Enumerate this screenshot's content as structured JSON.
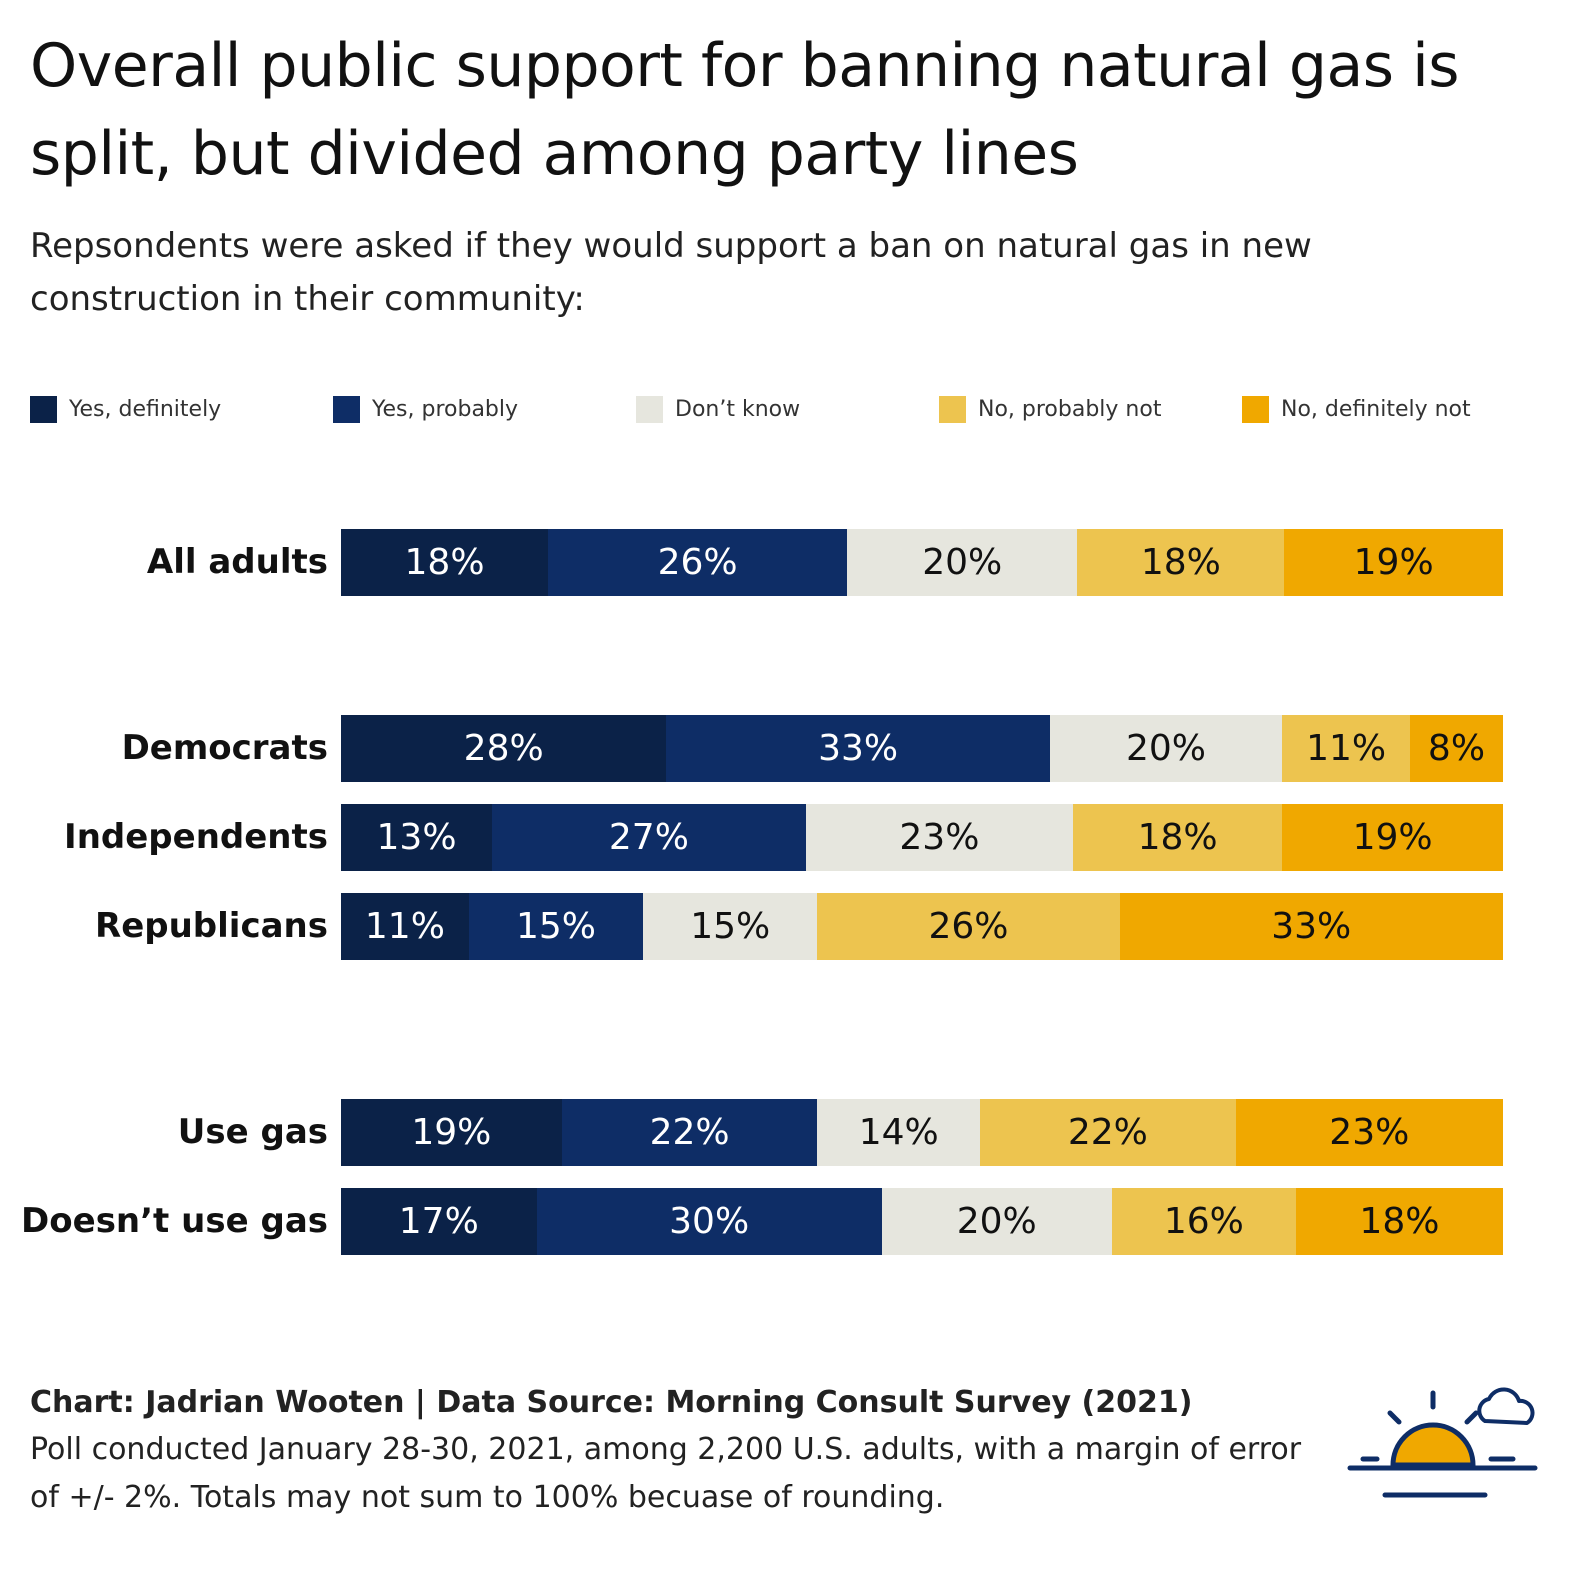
{
  "title": "Overall public support for banning natural gas is split, but divided among party lines",
  "subtitle": "Repsondents were asked if they would support a ban on natural gas in new construction in their community:",
  "legend": [
    {
      "label": "Yes, definitely",
      "color": "#0b2248"
    },
    {
      "label": "Yes, probably",
      "color": "#0e2d66"
    },
    {
      "label": "Don’t know",
      "color": "#e6e6de"
    },
    {
      "label": "No, probably not",
      "color": "#edc44f"
    },
    {
      "label": "No, definitely not",
      "color": "#f0a800"
    }
  ],
  "chart_data": {
    "type": "bar",
    "orientation": "horizontal",
    "stacked": true,
    "categories": [
      "All adults",
      "Democrats",
      "Independents",
      "Republicans",
      "Use gas",
      "Doesn’t use gas"
    ],
    "series": [
      {
        "name": "Yes, definitely",
        "values": [
          18,
          28,
          13,
          11,
          19,
          17
        ]
      },
      {
        "name": "Yes, probably",
        "values": [
          26,
          33,
          27,
          15,
          22,
          30
        ]
      },
      {
        "name": "Don’t know",
        "values": [
          20,
          20,
          23,
          15,
          14,
          20
        ]
      },
      {
        "name": "No, probably not",
        "values": [
          18,
          11,
          18,
          26,
          22,
          16
        ]
      },
      {
        "name": "No, definitely not",
        "values": [
          19,
          8,
          19,
          33,
          23,
          18
        ]
      }
    ],
    "value_suffix": "%",
    "legend_position": "top",
    "grid": false
  },
  "footer": {
    "credit": "Chart: Jadrian Wooten | Data Source: Morning Consult Survey (2021)",
    "note": "Poll conducted January 28-30, 2021, among 2,200 U.S. adults, with a margin of error of +/- 2%. Totals may not sum to 100% becuase of rounding."
  },
  "logo": {
    "icon": "sunrise-cloud-icon",
    "colors": {
      "line": "#0e2d66",
      "sun": "#f0a800"
    }
  }
}
